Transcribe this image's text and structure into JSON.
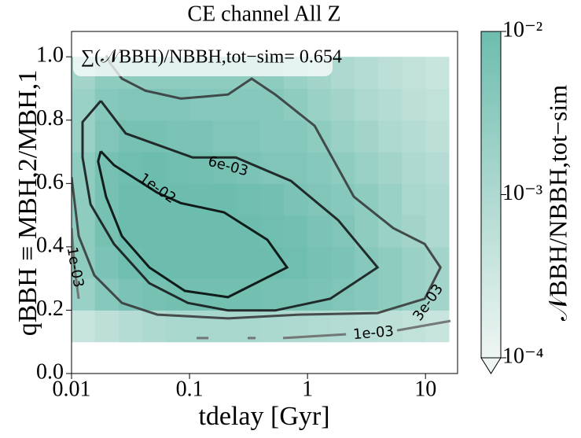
{
  "chart_data": {
    "type": "heatmap",
    "title": "CE channel All Z",
    "x_label": "tdelay [Gyr]",
    "y_label": "qBBH ≡ MBH,2/MBH,1",
    "annotation": "∑(𝒩BBH)/NBBH,tot−sim= 0.654",
    "xscale": "log",
    "xlim": [
      0.01,
      18.7
    ],
    "ylim": [
      0,
      1.08
    ],
    "xticks": [
      0.01,
      0.1,
      1,
      10
    ],
    "yticks": [
      {
        "value": 0,
        "label": "0.0"
      },
      0.2,
      0.4,
      0.6,
      0.8,
      {
        "value": 1,
        "label": "1.0"
      }
    ],
    "x_bins": [
      0.01,
      0.0158,
      0.0251,
      0.0398,
      0.0631,
      0.1,
      0.158,
      0.251,
      0.398,
      0.631,
      1,
      1.58,
      2.51,
      3.98,
      6.31,
      10,
      15.8
    ],
    "y_bins": [
      0.1,
      0.2,
      0.3,
      0.4,
      0.5,
      0.6,
      0.7,
      0.8,
      0.9,
      1.0
    ],
    "z": [
      [
        0.0004,
        0.0006,
        0.0008,
        0.001,
        0.0012,
        0.0012,
        0.0012,
        0.0012,
        0.0011,
        0.001,
        0.0009,
        0.0008,
        0.0007,
        0.0006,
        0.0005,
        0.0004
      ],
      [
        0.002,
        0.004,
        0.006,
        0.007,
        0.008,
        0.008,
        0.008,
        0.008,
        0.007,
        0.007,
        0.006,
        0.005,
        0.004,
        0.003,
        0.002,
        0.0015
      ],
      [
        0.003,
        0.006,
        0.009,
        0.011,
        0.012,
        0.012,
        0.012,
        0.011,
        0.01,
        0.009,
        0.007,
        0.006,
        0.004,
        0.003,
        0.002,
        0.0015
      ],
      [
        0.003,
        0.007,
        0.01,
        0.012,
        0.013,
        0.012,
        0.011,
        0.01,
        0.009,
        0.008,
        0.006,
        0.005,
        0.003,
        0.002,
        0.0015,
        0.001
      ],
      [
        0.003,
        0.007,
        0.011,
        0.012,
        0.012,
        0.011,
        0.01,
        0.009,
        0.008,
        0.006,
        0.005,
        0.004,
        0.003,
        0.002,
        0.0012,
        0.001
      ],
      [
        0.003,
        0.007,
        0.009,
        0.01,
        0.009,
        0.008,
        0.007,
        0.006,
        0.005,
        0.005,
        0.004,
        0.003,
        0.002,
        0.0015,
        0.001,
        0.0008
      ],
      [
        0.002,
        0.005,
        0.007,
        0.007,
        0.006,
        0.006,
        0.005,
        0.005,
        0.004,
        0.004,
        0.003,
        0.002,
        0.0015,
        0.001,
        0.0008,
        0.0006
      ],
      [
        0.002,
        0.004,
        0.005,
        0.005,
        0.005,
        0.004,
        0.004,
        0.004,
        0.004,
        0.003,
        0.002,
        0.0015,
        0.001,
        0.0008,
        0.0006,
        0.0005
      ],
      [
        0.0015,
        0.003,
        0.003,
        0.003,
        0.003,
        0.003,
        0.003,
        0.003,
        0.003,
        0.002,
        0.0015,
        0.001,
        0.0008,
        0.0006,
        0.0005,
        0.0004
      ]
    ],
    "colorbar": {
      "label": "𝒩BBH/NBBH,tot−sim",
      "scale": "log",
      "lim": [
        0.0001,
        0.01
      ],
      "colors": [
        "#eef5f3",
        "#6dbdae"
      ],
      "extend": "min",
      "ticks": [
        {
          "value": 0.0001,
          "label": "10⁻⁴"
        },
        {
          "value": 0.001,
          "label": "10⁻³"
        },
        {
          "value": 0.01,
          "label": "10⁻²"
        }
      ]
    },
    "contours": [
      {
        "label": "1e-02",
        "color": "#000000",
        "x": [
          0.0177,
          0.0168,
          0.0196,
          0.0267,
          0.0457,
          0.0912,
          0.212,
          0.671,
          0.457,
          0.196,
          0.0845,
          0.0533,
          0.0229,
          0.0177
        ],
        "y": [
          0.702,
          0.67,
          0.558,
          0.434,
          0.335,
          0.261,
          0.241,
          0.335,
          0.422,
          0.509,
          0.538,
          0.571,
          0.658,
          0.702
        ]
      },
      {
        "label": "6e-03",
        "color": "#111111",
        "x": [
          0.0177,
          0.0124,
          0.0124,
          0.0145,
          0.0229,
          0.0457,
          0.0968,
          0.212,
          0.533,
          1.56,
          3.92,
          1.82,
          0.724,
          0.247,
          0.1064,
          0.0288,
          0.0177
        ],
        "y": [
          0.861,
          0.794,
          0.682,
          0.534,
          0.409,
          0.285,
          0.223,
          0.199,
          0.199,
          0.236,
          0.335,
          0.484,
          0.608,
          0.682,
          0.682,
          0.758,
          0.861
        ]
      },
      {
        "label": "3e-03",
        "color": "#333333",
        "x": [
          0.01,
          0.0115,
          0.0156,
          0.0267,
          0.0533,
          0.212,
          0.845,
          3.92,
          9.84,
          13.4,
          9.84,
          5.33,
          2.47,
          1.15,
          0.533,
          0.336,
          0.212,
          0.0845,
          0.0423,
          0.0267,
          0.0212,
          0.0197
        ],
        "y": [
          0.62,
          0.434,
          0.31,
          0.223,
          0.186,
          0.174,
          0.186,
          0.191,
          0.236,
          0.335,
          0.409,
          0.459,
          0.558,
          0.782,
          0.881,
          0.931,
          0.881,
          0.868,
          0.893,
          0.931,
          0.98,
          1.005
        ]
      },
      {
        "label": "1e-03",
        "color": "#666666",
        "x": [
          0.01,
          0.0106,
          0.0115,
          null,
          0.1148,
          0.1445,
          null,
          0.311,
          0.363,
          null,
          0.621,
          2.12,
          null,
          5.75,
          16.3
        ],
        "y": [
          0.459,
          0.335,
          0.236,
          null,
          0.112,
          0.112,
          null,
          0.112,
          0.112,
          null,
          0.112,
          0.124,
          null,
          0.136,
          0.166
        ]
      }
    ]
  }
}
